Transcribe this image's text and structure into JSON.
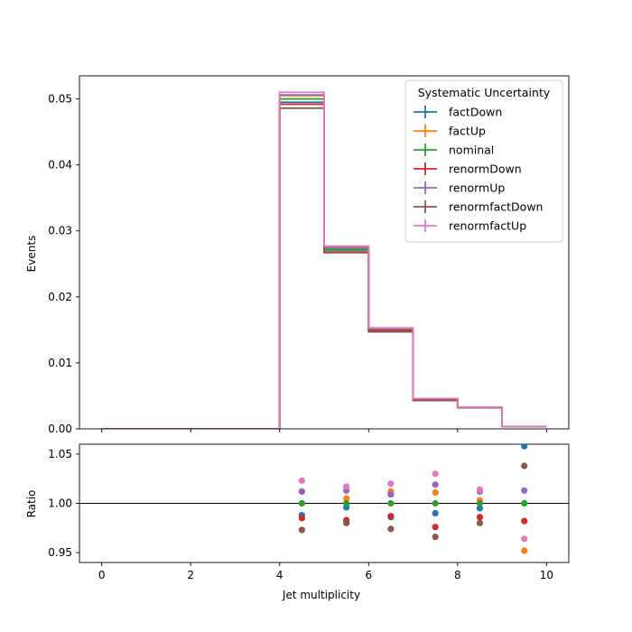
{
  "chart_data": {
    "type": "histogram_with_ratio",
    "xlabel": "Jet multiplicity",
    "xlim": [
      -0.5,
      10.5
    ],
    "x_ticks": [
      0,
      2,
      4,
      6,
      8,
      10
    ],
    "bin_edges": [
      0,
      1,
      2,
      3,
      4,
      5,
      6,
      7,
      8,
      9,
      10
    ],
    "main": {
      "ylabel": "Events",
      "ylim": [
        0,
        0.0535
      ],
      "y_ticks": [
        0.0,
        0.01,
        0.02,
        0.03,
        0.04,
        0.05
      ],
      "y_tick_labels": [
        "0.00",
        "0.01",
        "0.02",
        "0.03",
        "0.04",
        "0.05"
      ]
    },
    "ratio": {
      "ylabel": "Ratio",
      "ylim": [
        0.94,
        1.06
      ],
      "y_ticks": [
        0.95,
        1.0,
        1.05
      ],
      "y_tick_labels": [
        "0.95",
        "1.00",
        "1.05"
      ],
      "reference": 1.0
    },
    "legend": {
      "title": "Systematic Uncertainty",
      "placement": "top-right"
    },
    "series": [
      {
        "name": "factDown",
        "color": "#1f77b4",
        "values": [
          0,
          0,
          0,
          0,
          0.0495,
          0.0271,
          0.015,
          0.0044,
          0.0032,
          0.00036
        ],
        "ratio": [
          null,
          null,
          null,
          null,
          0.988,
          0.996,
          0.986,
          0.99,
          0.995,
          1.058
        ]
      },
      {
        "name": "factUp",
        "color": "#ff7f0e",
        "values": [
          0,
          0,
          0,
          0,
          0.0505,
          0.0274,
          0.0152,
          0.0045,
          0.0032,
          0.00033
        ],
        "ratio": [
          null,
          null,
          null,
          null,
          1.012,
          1.005,
          1.012,
          1.011,
          1.003,
          0.952
        ]
      },
      {
        "name": "nominal",
        "color": "#2ca02c",
        "values": [
          0,
          0,
          0,
          0,
          0.05,
          0.0272,
          0.0151,
          0.0045,
          0.0032,
          0.00035
        ],
        "ratio": [
          null,
          null,
          null,
          null,
          1.0,
          1.0,
          1.0,
          1.0,
          1.0,
          1.0
        ]
      },
      {
        "name": "renormDown",
        "color": "#d62728",
        "values": [
          0,
          0,
          0,
          0,
          0.0492,
          0.0268,
          0.0149,
          0.0044,
          0.0032,
          0.00034
        ],
        "ratio": [
          null,
          null,
          null,
          null,
          0.985,
          0.983,
          0.987,
          0.976,
          0.986,
          0.982
        ]
      },
      {
        "name": "renormUp",
        "color": "#9467bd",
        "values": [
          0,
          0,
          0,
          0,
          0.0506,
          0.0275,
          0.0152,
          0.0046,
          0.0032,
          0.00035
        ],
        "ratio": [
          null,
          null,
          null,
          null,
          1.012,
          1.013,
          1.009,
          1.019,
          1.012,
          1.013
        ]
      },
      {
        "name": "renormfactDown",
        "color": "#8c564b",
        "values": [
          0,
          0,
          0,
          0,
          0.0486,
          0.0267,
          0.0147,
          0.0043,
          0.0032,
          0.00036
        ],
        "ratio": [
          null,
          null,
          null,
          null,
          0.973,
          0.98,
          0.974,
          0.966,
          0.98,
          1.038
        ]
      },
      {
        "name": "renormfactUp",
        "color": "#e377c2",
        "values": [
          0,
          0,
          0,
          0,
          0.051,
          0.0277,
          0.0153,
          0.0046,
          0.0033,
          0.00034
        ],
        "ratio": [
          null,
          null,
          null,
          null,
          1.023,
          1.017,
          1.02,
          1.03,
          1.014,
          0.964
        ]
      }
    ]
  }
}
